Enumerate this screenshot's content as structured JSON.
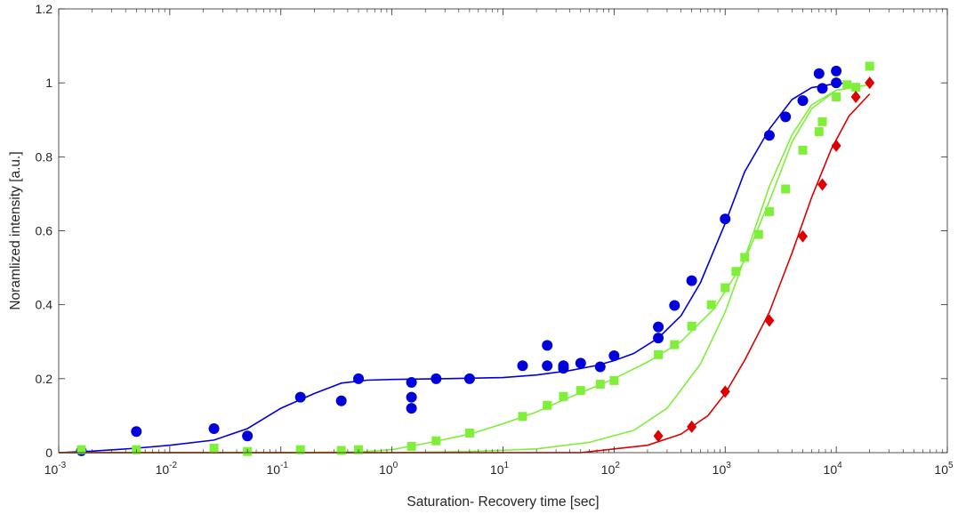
{
  "chart_data": {
    "type": "scatter",
    "title": "",
    "xlabel": "Saturation- Recovery time [sec]",
    "ylabel": "Noramlized intensity [a.u.]",
    "xscale": "log",
    "xlim": [
      0.001,
      100000
    ],
    "ylim": [
      0,
      1.2
    ],
    "grid": false,
    "legend": "none",
    "x_ticks": [
      {
        "base": "10",
        "exp": "-3"
      },
      {
        "base": "10",
        "exp": "-2"
      },
      {
        "base": "10",
        "exp": "-1"
      },
      {
        "base": "10",
        "exp": "0"
      },
      {
        "base": "10",
        "exp": "1"
      },
      {
        "base": "10",
        "exp": "2"
      },
      {
        "base": "10",
        "exp": "3"
      },
      {
        "base": "10",
        "exp": "4"
      },
      {
        "base": "10",
        "exp": "5"
      }
    ],
    "y_ticks": [
      "0",
      "0.2",
      "0.4",
      "0.6",
      "0.8",
      "1",
      "1.2"
    ],
    "series": [
      {
        "color": "#0000dd",
        "marker": "circle",
        "points": [
          [
            0.0016,
            0.005
          ],
          [
            0.005,
            0.057
          ],
          [
            0.025,
            0.065
          ],
          [
            0.05,
            0.045
          ],
          [
            0.15,
            0.15
          ],
          [
            0.35,
            0.14
          ],
          [
            0.5,
            0.2
          ],
          [
            1.5,
            0.19
          ],
          [
            1.5,
            0.15
          ],
          [
            1.5,
            0.12
          ],
          [
            2.5,
            0.2
          ],
          [
            5,
            0.2
          ],
          [
            15,
            0.235
          ],
          [
            25,
            0.29
          ],
          [
            25,
            0.235
          ],
          [
            35,
            0.235
          ],
          [
            35,
            0.228
          ],
          [
            50,
            0.242
          ],
          [
            75,
            0.232
          ],
          [
            100,
            0.262
          ],
          [
            250,
            0.34
          ],
          [
            250,
            0.31
          ],
          [
            350,
            0.398
          ],
          [
            500,
            0.465
          ],
          [
            1000,
            0.632
          ],
          [
            2500,
            0.858
          ],
          [
            3500,
            0.908
          ],
          [
            5000,
            0.952
          ],
          [
            7000,
            1.025
          ],
          [
            7500,
            0.985
          ],
          [
            10000,
            1.032
          ],
          [
            10000,
            1.0
          ]
        ],
        "fit": [
          [
            0.001,
            0.0
          ],
          [
            0.002,
            0.004
          ],
          [
            0.005,
            0.012
          ],
          [
            0.01,
            0.02
          ],
          [
            0.025,
            0.034
          ],
          [
            0.05,
            0.065
          ],
          [
            0.1,
            0.12
          ],
          [
            0.2,
            0.16
          ],
          [
            0.35,
            0.188
          ],
          [
            0.6,
            0.196
          ],
          [
            1,
            0.198
          ],
          [
            3,
            0.2
          ],
          [
            10,
            0.203
          ],
          [
            20,
            0.21
          ],
          [
            40,
            0.222
          ],
          [
            70,
            0.236
          ],
          [
            100,
            0.249
          ],
          [
            150,
            0.268
          ],
          [
            250,
            0.31
          ],
          [
            400,
            0.37
          ],
          [
            600,
            0.46
          ],
          [
            1000,
            0.62
          ],
          [
            1500,
            0.76
          ],
          [
            2500,
            0.875
          ],
          [
            4000,
            0.955
          ],
          [
            6000,
            0.987
          ],
          [
            10000,
            0.998
          ],
          [
            13000,
            1.0
          ]
        ]
      },
      {
        "color": "#7fef3a",
        "marker": "square",
        "points": [
          [
            0.0016,
            0.008
          ],
          [
            0.005,
            0.008
          ],
          [
            0.025,
            0.012
          ],
          [
            0.05,
            0.003
          ],
          [
            0.15,
            0.008
          ],
          [
            0.35,
            0.006
          ],
          [
            0.5,
            0.008
          ],
          [
            1.5,
            0.017
          ],
          [
            2.5,
            0.032
          ],
          [
            5,
            0.053
          ],
          [
            15,
            0.098
          ],
          [
            25,
            0.128
          ],
          [
            35,
            0.152
          ],
          [
            50,
            0.168
          ],
          [
            75,
            0.185
          ],
          [
            100,
            0.195
          ],
          [
            250,
            0.265
          ],
          [
            350,
            0.292
          ],
          [
            500,
            0.342
          ],
          [
            750,
            0.4
          ],
          [
            1000,
            0.446
          ],
          [
            1250,
            0.49
          ],
          [
            1500,
            0.528
          ],
          [
            2000,
            0.59
          ],
          [
            2500,
            0.652
          ],
          [
            3500,
            0.713
          ],
          [
            5000,
            0.818
          ],
          [
            7000,
            0.868
          ],
          [
            7500,
            0.895
          ],
          [
            10000,
            0.962
          ],
          [
            12500,
            0.995
          ],
          [
            15000,
            0.988
          ],
          [
            20000,
            1.045
          ]
        ],
        "fit": [
          [
            0.001,
            0.0
          ],
          [
            0.1,
            0.0
          ],
          [
            0.5,
            0.002
          ],
          [
            1,
            0.008
          ],
          [
            2,
            0.025
          ],
          [
            5,
            0.05
          ],
          [
            10,
            0.078
          ],
          [
            20,
            0.11
          ],
          [
            40,
            0.15
          ],
          [
            70,
            0.18
          ],
          [
            100,
            0.2
          ],
          [
            200,
            0.245
          ],
          [
            400,
            0.3
          ],
          [
            800,
            0.39
          ],
          [
            1500,
            0.52
          ],
          [
            2500,
            0.68
          ],
          [
            4000,
            0.84
          ],
          [
            6000,
            0.93
          ],
          [
            10000,
            0.98
          ],
          [
            20000,
            0.995
          ]
        ],
        "fit2": [
          [
            0.001,
            0.0
          ],
          [
            1,
            0.0
          ],
          [
            5,
            0.003
          ],
          [
            20,
            0.01
          ],
          [
            60,
            0.028
          ],
          [
            150,
            0.06
          ],
          [
            300,
            0.12
          ],
          [
            600,
            0.24
          ],
          [
            1000,
            0.38
          ],
          [
            1600,
            0.55
          ],
          [
            2500,
            0.72
          ],
          [
            4000,
            0.86
          ],
          [
            6000,
            0.94
          ],
          [
            10000,
            0.98
          ],
          [
            20000,
            0.995
          ]
        ]
      },
      {
        "color": "#dd0000",
        "marker": "diamond",
        "points": [
          [
            250,
            0.045
          ],
          [
            500,
            0.07
          ],
          [
            1000,
            0.165
          ],
          [
            2500,
            0.357
          ],
          [
            5000,
            0.585
          ],
          [
            7500,
            0.725
          ],
          [
            10000,
            0.83
          ],
          [
            15000,
            0.962
          ],
          [
            20000,
            1.0
          ]
        ],
        "fit": [
          [
            0.001,
            0.0
          ],
          [
            50,
            0.0
          ],
          [
            200,
            0.02
          ],
          [
            400,
            0.05
          ],
          [
            700,
            0.1
          ],
          [
            1000,
            0.16
          ],
          [
            1500,
            0.25
          ],
          [
            2500,
            0.38
          ],
          [
            4000,
            0.54
          ],
          [
            6000,
            0.69
          ],
          [
            9000,
            0.82
          ],
          [
            13000,
            0.91
          ],
          [
            20000,
            0.97
          ]
        ]
      }
    ]
  }
}
